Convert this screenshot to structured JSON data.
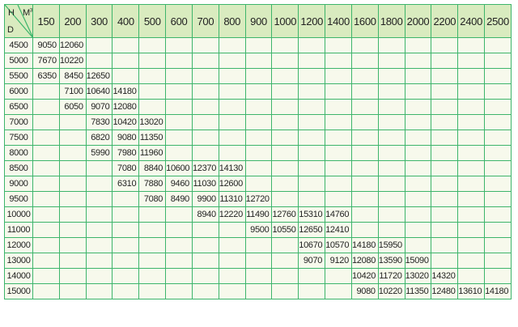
{
  "corner": {
    "h": "H",
    "m": "M",
    "m_sup": "3",
    "d": "D"
  },
  "colors": {
    "grid": "#3db56b",
    "header_bg": "#d9ebbf",
    "body_bg": "#f7f9ec"
  },
  "columns": [
    "150",
    "200",
    "300",
    "400",
    "500",
    "600",
    "700",
    "800",
    "900",
    "1000",
    "1200",
    "1400",
    "1600",
    "1800",
    "2000",
    "2200",
    "2400",
    "2500"
  ],
  "rows": [
    {
      "d": "4500",
      "cells": [
        "9050",
        "12060",
        "",
        "",
        "",
        "",
        "",
        "",
        "",
        "",
        "",
        "",
        "",
        "",
        "",
        "",
        "",
        ""
      ]
    },
    {
      "d": "5000",
      "cells": [
        "7670",
        "10220",
        "",
        "",
        "",
        "",
        "",
        "",
        "",
        "",
        "",
        "",
        "",
        "",
        "",
        "",
        "",
        ""
      ]
    },
    {
      "d": "5500",
      "cells": [
        "6350",
        "8450",
        "12650",
        "",
        "",
        "",
        "",
        "",
        "",
        "",
        "",
        "",
        "",
        "",
        "",
        "",
        "",
        ""
      ]
    },
    {
      "d": "6000",
      "cells": [
        "",
        "7100",
        "10640",
        "14180",
        "",
        "",
        "",
        "",
        "",
        "",
        "",
        "",
        "",
        "",
        "",
        "",
        "",
        ""
      ]
    },
    {
      "d": "6500",
      "cells": [
        "",
        "6050",
        "9070",
        "12080",
        "",
        "",
        "",
        "",
        "",
        "",
        "",
        "",
        "",
        "",
        "",
        "",
        "",
        ""
      ]
    },
    {
      "d": "7000",
      "cells": [
        "",
        "",
        "7830",
        "10420",
        "13020",
        "",
        "",
        "",
        "",
        "",
        "",
        "",
        "",
        "",
        "",
        "",
        "",
        ""
      ]
    },
    {
      "d": "7500",
      "cells": [
        "",
        "",
        "6820",
        "9080",
        "11350",
        "",
        "",
        "",
        "",
        "",
        "",
        "",
        "",
        "",
        "",
        "",
        "",
        ""
      ]
    },
    {
      "d": "8000",
      "cells": [
        "",
        "",
        "5990",
        "7980",
        "11960",
        "",
        "",
        "",
        "",
        "",
        "",
        "",
        "",
        "",
        "",
        "",
        "",
        ""
      ]
    },
    {
      "d": "8500",
      "cells": [
        "",
        "",
        "",
        "7080",
        "8840",
        "10600",
        "12370",
        "14130",
        "",
        "",
        "",
        "",
        "",
        "",
        "",
        "",
        "",
        ""
      ]
    },
    {
      "d": "9000",
      "cells": [
        "",
        "",
        "",
        "6310",
        "7880",
        "9460",
        "11030",
        "12600",
        "",
        "",
        "",
        "",
        "",
        "",
        "",
        "",
        "",
        ""
      ]
    },
    {
      "d": "9500",
      "cells": [
        "",
        "",
        "",
        "",
        "7080",
        "8490",
        "9900",
        "11310",
        "12720",
        "",
        "",
        "",
        "",
        "",
        "",
        "",
        "",
        ""
      ]
    },
    {
      "d": "10000",
      "cells": [
        "",
        "",
        "",
        "",
        "",
        "",
        "8940",
        "12220",
        "11490",
        "12760",
        "15310",
        "14760",
        "",
        "",
        "",
        "",
        "",
        ""
      ]
    },
    {
      "d": "11000",
      "cells": [
        "",
        "",
        "",
        "",
        "",
        "",
        "",
        "",
        "9500",
        "10550",
        "12650",
        "12410",
        "",
        "",
        "",
        "",
        "",
        ""
      ]
    },
    {
      "d": "12000",
      "cells": [
        "",
        "",
        "",
        "",
        "",
        "",
        "",
        "",
        "",
        "",
        "10670",
        "10570",
        "14180",
        "15950",
        "",
        "",
        "",
        ""
      ]
    },
    {
      "d": "13000",
      "cells": [
        "",
        "",
        "",
        "",
        "",
        "",
        "",
        "",
        "",
        "",
        "9070",
        "9120",
        "12080",
        "13590",
        "15090",
        "",
        "",
        ""
      ]
    },
    {
      "d": "14000",
      "cells": [
        "",
        "",
        "",
        "",
        "",
        "",
        "",
        "",
        "",
        "",
        "",
        "",
        "10420",
        "11720",
        "13020",
        "14320",
        "",
        ""
      ]
    },
    {
      "d": "15000",
      "cells": [
        "",
        "",
        "",
        "",
        "",
        "",
        "",
        "",
        "",
        "",
        "",
        "",
        "9080",
        "10220",
        "11350",
        "12480",
        "13610",
        "14180"
      ]
    }
  ]
}
